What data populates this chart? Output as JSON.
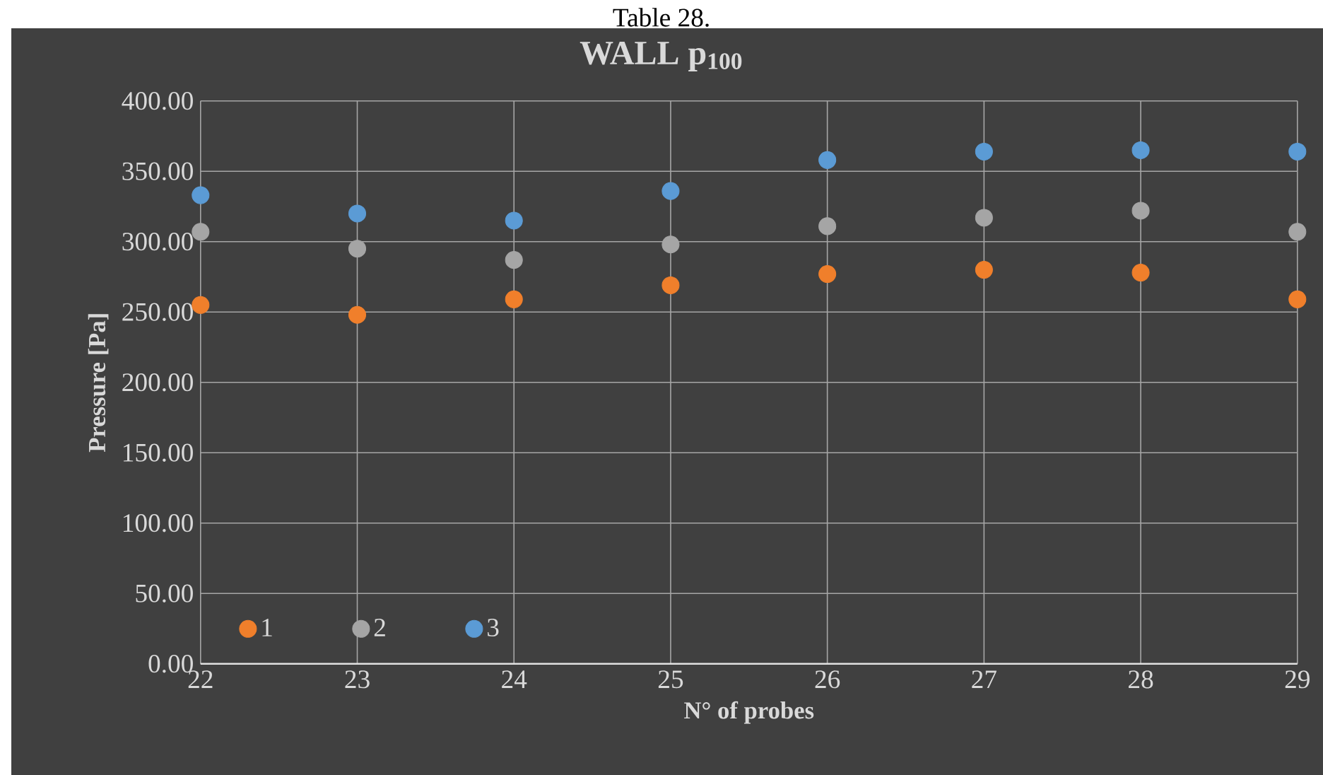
{
  "chart_data": {
    "type": "scatter",
    "title": "WALL p$_{100}$",
    "xlabel": "N° of probes",
    "ylabel": "Pressure [Pa]",
    "annotations": [
      "Table 28."
    ],
    "x": [
      22,
      23,
      24,
      25,
      26,
      27,
      28,
      29
    ],
    "series": [
      {
        "name": "1",
        "color": "#f07f2b",
        "values": [
          255,
          248,
          259,
          269,
          277,
          280,
          278,
          259
        ]
      },
      {
        "name": "2",
        "color": "#a5a5a5",
        "values": [
          307,
          295,
          287,
          298,
          311,
          317,
          322,
          307
        ]
      },
      {
        "name": "3",
        "color": "#5b9bd5",
        "values": [
          333,
          320,
          315,
          336,
          358,
          364,
          365,
          364
        ]
      }
    ],
    "xlim": [
      22,
      29
    ],
    "xticks": [
      22,
      23,
      24,
      25,
      26,
      27,
      28,
      29
    ],
    "ylim": [
      0,
      400
    ],
    "yticks": [
      {
        "value": 0,
        "label": "0.00"
      },
      {
        "value": 50,
        "label": "50.00"
      },
      {
        "value": 100,
        "label": "100.00"
      },
      {
        "value": 150,
        "label": "150.00"
      },
      {
        "value": 200,
        "label": "200.00"
      },
      {
        "value": 250,
        "label": "250.00"
      },
      {
        "value": 300,
        "label": "300.00"
      },
      {
        "value": 350,
        "label": "350.00"
      },
      {
        "value": 400,
        "label": "400.00"
      }
    ],
    "grid": true,
    "legend": "bottom left",
    "marker": "circle"
  }
}
